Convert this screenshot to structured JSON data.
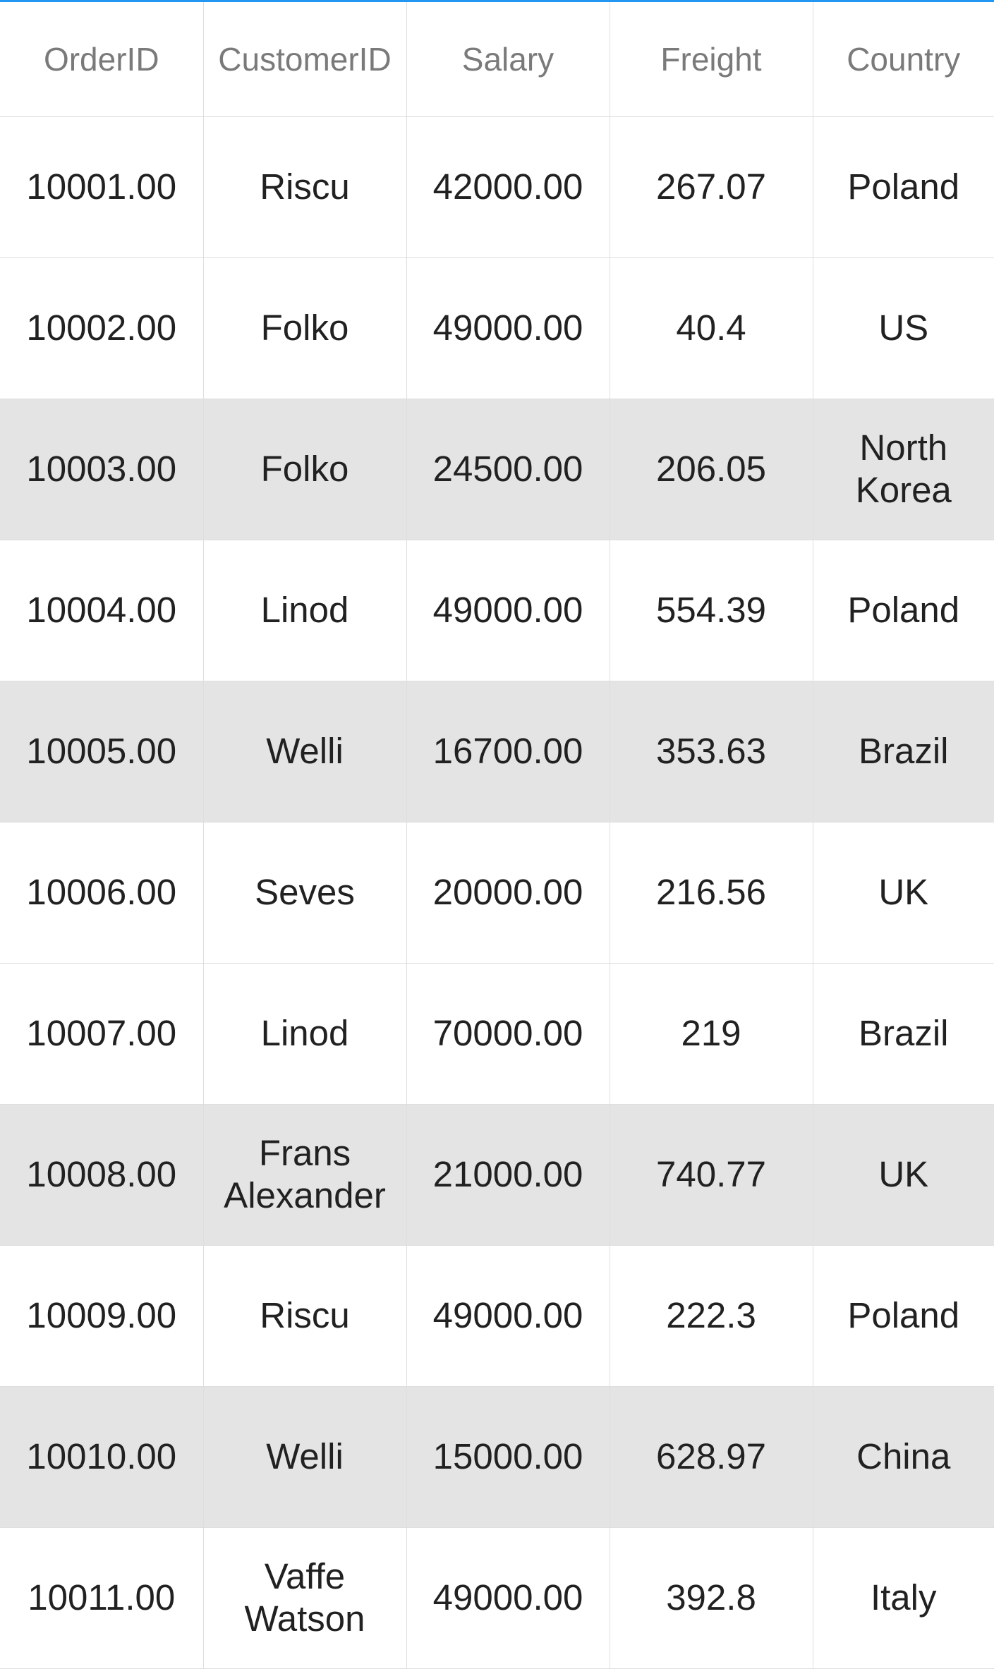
{
  "grid": {
    "columns": [
      "OrderID",
      "CustomerID",
      "Salary",
      "Freight",
      "Country"
    ],
    "rows": [
      {
        "order_id": "10001.00",
        "customer_id": "Riscu",
        "salary": "42000.00",
        "freight": "267.07",
        "country": "Poland",
        "shaded": false
      },
      {
        "order_id": "10002.00",
        "customer_id": "Folko",
        "salary": "49000.00",
        "freight": "40.4",
        "country": "US",
        "shaded": false
      },
      {
        "order_id": "10003.00",
        "customer_id": "Folko",
        "salary": "24500.00",
        "freight": "206.05",
        "country": "North Korea",
        "shaded": true
      },
      {
        "order_id": "10004.00",
        "customer_id": "Linod",
        "salary": "49000.00",
        "freight": "554.39",
        "country": "Poland",
        "shaded": false
      },
      {
        "order_id": "10005.00",
        "customer_id": "Welli",
        "salary": "16700.00",
        "freight": "353.63",
        "country": "Brazil",
        "shaded": true
      },
      {
        "order_id": "10006.00",
        "customer_id": "Seves",
        "salary": "20000.00",
        "freight": "216.56",
        "country": "UK",
        "shaded": false
      },
      {
        "order_id": "10007.00",
        "customer_id": "Linod",
        "salary": "70000.00",
        "freight": "219",
        "country": "Brazil",
        "shaded": false
      },
      {
        "order_id": "10008.00",
        "customer_id": "Frans Alexander",
        "salary": "21000.00",
        "freight": "740.77",
        "country": "UK",
        "shaded": true
      },
      {
        "order_id": "10009.00",
        "customer_id": "Riscu",
        "salary": "49000.00",
        "freight": "222.3",
        "country": "Poland",
        "shaded": false
      },
      {
        "order_id": "10010.00",
        "customer_id": "Welli",
        "salary": "15000.00",
        "freight": "628.97",
        "country": "China",
        "shaded": true
      },
      {
        "order_id": "10011.00",
        "customer_id": "Vaffe Watson",
        "salary": "49000.00",
        "freight": "392.8",
        "country": "Italy",
        "shaded": false
      }
    ]
  },
  "colors": {
    "accent": "#2196f3",
    "header_text": "#7a7a7a",
    "cell_text": "#212121",
    "shaded_row": "#e4e4e4",
    "grid_line": "#dedede"
  }
}
